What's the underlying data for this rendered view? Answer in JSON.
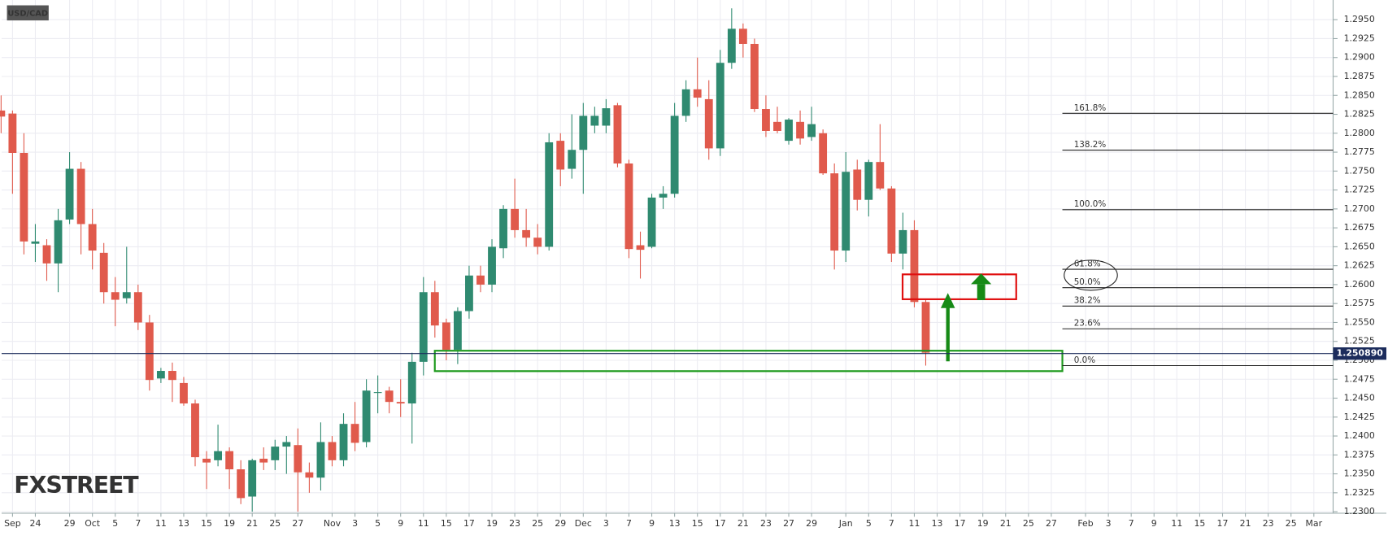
{
  "chart_data": {
    "type": "candlestick",
    "title": "USD/CAD",
    "watermark": "FXSTREET",
    "categories": [
      null,
      "Sep",
      null,
      "24",
      null,
      null,
      "29",
      null,
      "Oct",
      null,
      "5",
      null,
      "7",
      null,
      "11",
      null,
      "13",
      null,
      "15",
      null,
      "19",
      null,
      "21",
      null,
      "25",
      null,
      "27",
      null,
      null,
      "Nov",
      null,
      "3",
      null,
      "5",
      null,
      "9",
      null,
      "11",
      null,
      "15",
      null,
      "17",
      null,
      "19",
      null,
      "23",
      null,
      "25",
      null,
      "29",
      null,
      "Dec",
      null,
      "3",
      null,
      "7",
      null,
      "9",
      null,
      "13",
      null,
      "15",
      null,
      "17",
      null,
      "21",
      null,
      "23",
      null,
      "27",
      null,
      "29",
      null,
      null,
      "Jan",
      null,
      "5",
      null,
      "7",
      null,
      "11",
      null,
      "13",
      null,
      "17",
      null,
      "19",
      null,
      "21",
      null,
      "25",
      null,
      "27",
      null,
      null,
      "Feb",
      null,
      "3",
      null,
      "7",
      null,
      "9",
      null,
      "11",
      null,
      "15",
      null,
      "17",
      null,
      "21",
      null,
      "23",
      null,
      "25",
      null,
      "Mar"
    ],
    "open": [
      1.283,
      1.2826,
      1.2774,
      1.2654,
      1.2652,
      1.2628,
      1.2686,
      1.2753,
      1.268,
      1.2642,
      1.259,
      1.2582,
      1.259,
      1.255,
      1.2476,
      1.2486,
      1.247,
      1.2443,
      1.237,
      1.2368,
      1.238,
      1.2356,
      1.232,
      1.237,
      1.2368,
      1.2386,
      1.2388,
      1.2352,
      1.2345,
      1.2392,
      1.2368,
      1.2416,
      1.2392,
      1.2457,
      1.246,
      1.2445,
      1.2443,
      1.2498,
      1.259,
      1.255,
      1.2514,
      1.2565,
      1.2612,
      1.26,
      1.2648,
      1.27,
      1.2672,
      1.2662,
      1.265,
      1.279,
      1.2753,
      1.2778,
      1.281,
      1.281,
      1.2837,
      1.276,
      1.2652,
      1.265,
      1.2715,
      1.272,
      1.2823,
      1.2858,
      1.2845,
      1.278,
      1.2893,
      1.2938,
      1.2918,
      1.2832,
      1.2815,
      1.279,
      1.2815,
      1.2795,
      1.28,
      1.2747,
      1.2645,
      1.2752,
      1.2712,
      1.2762,
      1.2727,
      1.2641,
      1.2672,
      1.2577,
      null,
      null,
      null,
      null,
      null,
      null,
      null,
      null,
      null,
      null,
      null,
      null,
      null,
      null,
      null,
      null,
      null,
      null,
      null,
      null,
      null,
      null,
      null,
      null,
      null,
      null,
      null,
      null,
      null,
      null,
      null,
      null,
      null,
      null
    ],
    "high": [
      1.285,
      1.283,
      1.28,
      1.268,
      1.266,
      1.27,
      1.2775,
      1.2762,
      1.27,
      1.2655,
      1.261,
      1.265,
      1.26,
      1.256,
      1.249,
      1.2497,
      1.2478,
      1.2448,
      1.238,
      1.2415,
      1.2385,
      1.2368,
      1.237,
      1.2385,
      1.2395,
      1.24,
      1.241,
      1.2365,
      1.2418,
      1.24,
      1.243,
      1.2445,
      1.2475,
      1.248,
      1.2465,
      1.2475,
      1.251,
      1.261,
      1.2605,
      1.2555,
      1.257,
      1.2625,
      1.2625,
      1.266,
      1.2705,
      1.274,
      1.27,
      1.268,
      1.28,
      1.28,
      1.2825,
      1.284,
      1.2835,
      1.2845,
      1.284,
      1.2765,
      1.267,
      1.272,
      1.273,
      1.284,
      1.287,
      1.29,
      1.287,
      1.291,
      1.2965,
      1.2945,
      1.2925,
      1.285,
      1.2835,
      1.282,
      1.283,
      1.2835,
      1.2805,
      1.276,
      1.2775,
      1.2765,
      1.2765,
      1.2812,
      1.273,
      1.2695,
      1.2685,
      1.258,
      null,
      null,
      null,
      null,
      null,
      null,
      null,
      null,
      null,
      null,
      null,
      null,
      null,
      null,
      null,
      null,
      null,
      null,
      null,
      null,
      null,
      null,
      null,
      null,
      null,
      null,
      null,
      null,
      null,
      null,
      null,
      null,
      null,
      null
    ],
    "low": [
      1.28,
      1.272,
      1.264,
      1.263,
      1.2605,
      1.259,
      1.268,
      1.264,
      1.262,
      1.2575,
      1.2545,
      1.2575,
      1.254,
      1.246,
      1.247,
      1.2445,
      1.244,
      1.236,
      1.233,
      1.236,
      1.233,
      1.231,
      1.23,
      1.2355,
      1.2355,
      1.235,
      1.23,
      1.2325,
      1.2328,
      1.236,
      1.236,
      1.238,
      1.2385,
      1.243,
      1.243,
      1.2425,
      1.239,
      1.248,
      1.253,
      1.25,
      1.2495,
      1.2555,
      1.259,
      1.259,
      1.2635,
      1.2662,
      1.265,
      1.264,
      1.2645,
      1.273,
      1.274,
      1.272,
      1.28,
      1.28,
      1.2755,
      1.2635,
      1.2608,
      1.2648,
      1.27,
      1.2715,
      1.2815,
      1.2835,
      1.2765,
      1.277,
      1.2885,
      1.29,
      1.2828,
      1.2795,
      1.28,
      1.2785,
      1.2785,
      1.279,
      1.2745,
      1.262,
      1.263,
      1.2698,
      1.269,
      1.2725,
      1.263,
      1.262,
      1.257,
      1.2493,
      null,
      null,
      null,
      null,
      null,
      null,
      null,
      null,
      null,
      null,
      null,
      null,
      null,
      null,
      null,
      null,
      null,
      null,
      null,
      null,
      null,
      null,
      null,
      null,
      null,
      null,
      null,
      null,
      null,
      null,
      null,
      null,
      null,
      null
    ],
    "close": [
      1.2822,
      1.2774,
      1.2657,
      1.2657,
      1.2628,
      1.2685,
      1.2753,
      1.268,
      1.2645,
      1.259,
      1.258,
      1.259,
      1.255,
      1.2474,
      1.2486,
      1.2474,
      1.2443,
      1.2372,
      1.2365,
      1.238,
      1.2356,
      1.2318,
      1.2368,
      1.2365,
      1.2386,
      1.2392,
      1.2352,
      1.2345,
      1.2392,
      1.2368,
      1.2416,
      1.2391,
      1.246,
      1.2458,
      1.2445,
      1.2443,
      1.2498,
      1.259,
      1.2546,
      1.2514,
      1.2565,
      1.2612,
      1.26,
      1.265,
      1.27,
      1.2672,
      1.2662,
      1.265,
      1.2788,
      1.2752,
      1.2778,
      1.2823,
      1.2823,
      1.2833,
      1.276,
      1.2647,
      1.2646,
      1.2715,
      1.272,
      1.2823,
      1.2858,
      1.2847,
      1.278,
      1.2893,
      1.2938,
      1.2918,
      1.2832,
      1.2803,
      1.2803,
      1.2818,
      1.2793,
      1.2812,
      1.2747,
      1.2645,
      1.2749,
      1.2712,
      1.2762,
      1.2727,
      1.2641,
      1.2672,
      1.2577,
      1.251,
      null,
      null,
      null,
      null,
      null,
      null,
      null,
      null,
      null,
      null,
      null,
      null,
      null,
      null,
      null,
      null,
      null,
      null,
      null,
      null,
      null,
      null,
      null,
      null,
      null,
      null,
      null,
      null,
      null,
      null,
      null,
      null,
      null,
      null
    ],
    "up_color": "#2f8a70",
    "down_color": "#e05a4c",
    "ylim": [
      1.2298,
      1.2976
    ],
    "yticks": [
      {
        "value": 1.23,
        "label": "1.2300"
      },
      {
        "value": 1.2325,
        "label": "1.2325"
      },
      {
        "value": 1.235,
        "label": "1.2350"
      },
      {
        "value": 1.2375,
        "label": "1.2375"
      },
      {
        "value": 1.24,
        "label": "1.2400"
      },
      {
        "value": 1.2425,
        "label": "1.2425"
      },
      {
        "value": 1.245,
        "label": "1.2450"
      },
      {
        "value": 1.2475,
        "label": "1.2475"
      },
      {
        "value": 1.25,
        "label": "1.2500"
      },
      {
        "value": 1.2525,
        "label": "1.2525"
      },
      {
        "value": 1.255,
        "label": "1.2550"
      },
      {
        "value": 1.2575,
        "label": "1.2575"
      },
      {
        "value": 1.26,
        "label": "1.2600"
      },
      {
        "value": 1.2625,
        "label": "1.2625"
      },
      {
        "value": 1.265,
        "label": "1.2650"
      },
      {
        "value": 1.2675,
        "label": "1.2675"
      },
      {
        "value": 1.27,
        "label": "1.2700"
      },
      {
        "value": 1.2725,
        "label": "1.2725"
      },
      {
        "value": 1.275,
        "label": "1.2750"
      },
      {
        "value": 1.2775,
        "label": "1.2775"
      },
      {
        "value": 1.28,
        "label": "1.2800"
      },
      {
        "value": 1.2825,
        "label": "1.2825"
      },
      {
        "value": 1.285,
        "label": "1.2850"
      },
      {
        "value": 1.2875,
        "label": "1.2875"
      },
      {
        "value": 1.29,
        "label": "1.2900"
      },
      {
        "value": 1.2925,
        "label": "1.2925"
      },
      {
        "value": 1.295,
        "label": "1.2950"
      }
    ],
    "grid": true,
    "current_price": {
      "value": 1.25089,
      "label": "1.250890"
    },
    "fib": {
      "low": 1.2493,
      "high": 1.2699,
      "levels": [
        161.8,
        138.2,
        100,
        61.8,
        50,
        38.2,
        23.6,
        0
      ],
      "level_labels": [
        "161.8%",
        "138.2%",
        "100.0%",
        "61.8%",
        "50.0%",
        "38.2%",
        "23.6%",
        "0.0%"
      ]
    }
  }
}
